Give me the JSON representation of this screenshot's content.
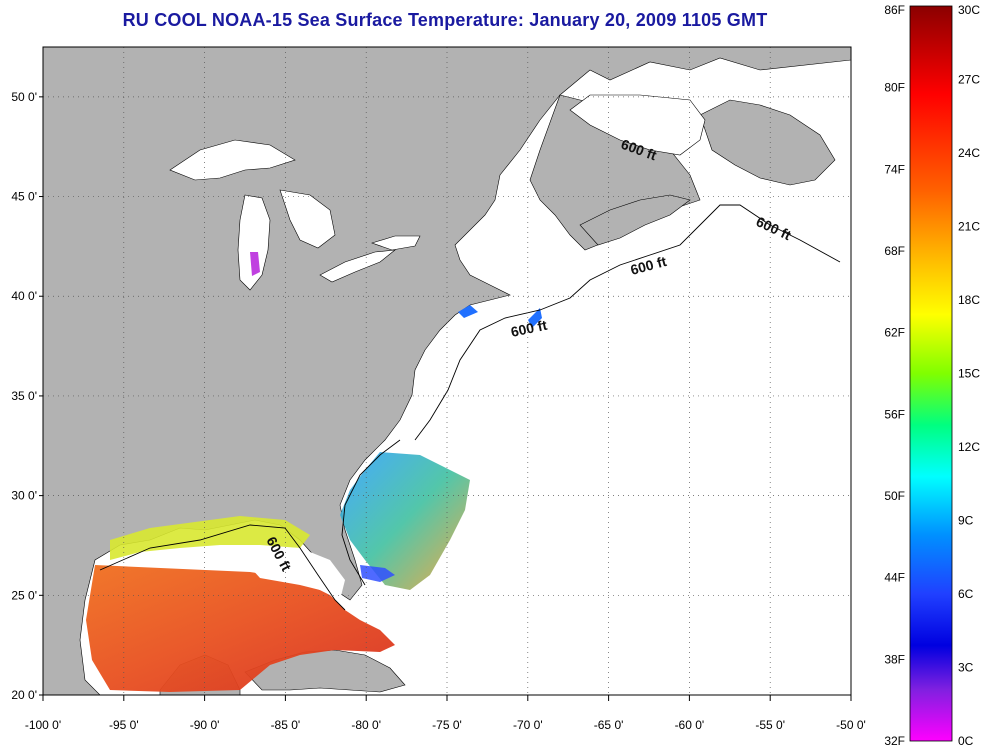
{
  "title": "RU COOL  NOAA-15  Sea Surface Temperature:  January 20, 2009 1105 GMT",
  "map": {
    "lon_range": [
      -100,
      -50
    ],
    "lat_range": [
      20,
      52.5
    ],
    "lon_ticks": [
      "-100 0'",
      "-95 0'",
      "-90 0'",
      "-85 0'",
      "-80 0'",
      "-75 0'",
      "-70 0'",
      "-65 0'",
      "-60 0'",
      "-55 0'",
      "-50 0'"
    ],
    "lat_ticks": [
      "50 0'",
      "45 0'",
      "40 0'",
      "35 0'",
      "30 0'",
      "25 0'",
      "20 0'"
    ],
    "grid": "dotted",
    "land_color": "#b2b2b2",
    "water_color": "#ffffff",
    "contour_labels": [
      "600 ft",
      "600 ft",
      "600 ft",
      "600 ft",
      "600 ft"
    ]
  },
  "colorbar": {
    "fahrenheit_labels": [
      "86F",
      "80F",
      "74F",
      "68F",
      "62F",
      "56F",
      "50F",
      "44F",
      "38F",
      "32F"
    ],
    "celsius_labels": [
      "30C",
      "27C",
      "24C",
      "21C",
      "18C",
      "15C",
      "12C",
      "9C",
      "6C",
      "3C",
      "0C"
    ],
    "colors_top_to_bottom": [
      "#8b0000",
      "#ff0000",
      "#ff8000",
      "#ffff00",
      "#80ff00",
      "#00ff80",
      "#00ffff",
      "#0080ff",
      "#0000ff",
      "#8000ff",
      "#ff00ff"
    ]
  }
}
